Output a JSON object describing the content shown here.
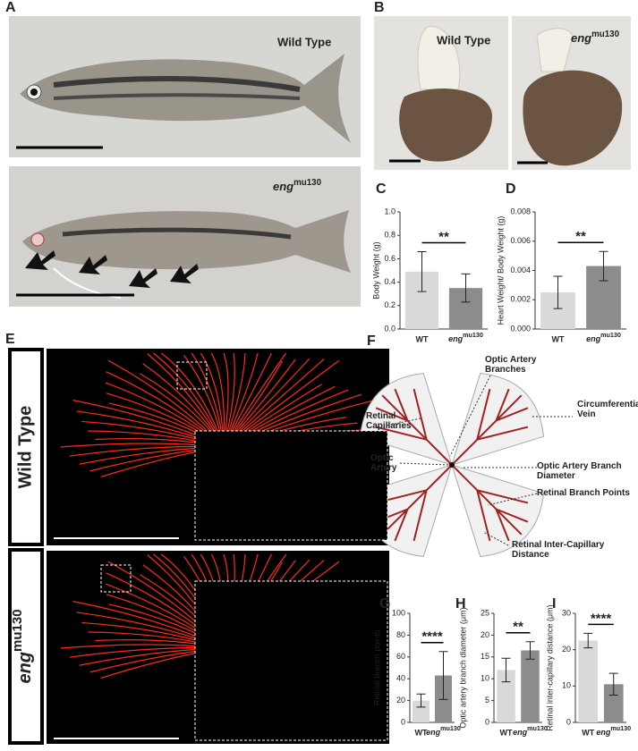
{
  "panels": {
    "a": {
      "letter": "A",
      "top_label": "Wild Type",
      "bottom_label": "engmu130"
    },
    "b": {
      "letter": "B",
      "left_label": "Wild Type",
      "right_label": "engmu130"
    },
    "e": {
      "letter": "E",
      "top_label": "Wild Type",
      "bottom_label": "engmu130"
    },
    "f": {
      "letter": "F",
      "labels": [
        "Optic Artery Branches",
        "Circumferential Vein",
        "Retinal Capillaries",
        "Optic Artery",
        "Optic Artery Branch Diameter",
        "Retinal Branch Points",
        "Retinal Inter-Capillary Distance"
      ]
    }
  },
  "chart_data": [
    {
      "type": "bar",
      "panel": "C",
      "y_label": "Body Weight (g)",
      "categories": [
        "WT",
        "engmu130"
      ],
      "values": [
        0.49,
        0.35
      ],
      "errors": [
        0.17,
        0.12
      ],
      "colors": [
        "#d9d9d9",
        "#8c8c8c"
      ],
      "significance": "**",
      "ylim": [
        0,
        1.0
      ],
      "yticks": [
        {
          "value": 0,
          "label": "0.0"
        },
        0.2,
        0.4,
        0.6,
        0.8,
        {
          "value": 1.0,
          "label": "1.0"
        }
      ]
    },
    {
      "type": "bar",
      "panel": "D",
      "y_label": "Heart Weight/ Body Weight (g)",
      "categories": [
        "WT",
        "engmu130"
      ],
      "values": [
        0.0025,
        0.0043
      ],
      "errors": [
        0.0011,
        0.001
      ],
      "colors": [
        "#d9d9d9",
        "#8c8c8c"
      ],
      "significance": "**",
      "ylim": [
        0,
        0.008
      ],
      "yticks": [
        {
          "value": 0,
          "label": "0.000"
        },
        {
          "value": 0.002,
          "label": "0.002"
        },
        {
          "value": 0.004,
          "label": "0.004"
        },
        {
          "value": 0.006,
          "label": "0.006"
        },
        {
          "value": 0.008,
          "label": "0.008"
        }
      ]
    },
    {
      "type": "bar",
      "panel": "G",
      "y_label": "Retinal branch points",
      "categories": [
        "WT",
        "engmu130"
      ],
      "values": [
        20,
        43
      ],
      "errors": [
        6,
        22
      ],
      "colors": [
        "#d9d9d9",
        "#8c8c8c"
      ],
      "significance": "****",
      "ylim": [
        0,
        100
      ],
      "yticks": [
        0,
        20,
        40,
        60,
        80,
        100
      ]
    },
    {
      "type": "bar",
      "panel": "H",
      "y_label": "Optic artery branch diameter (μm)",
      "categories": [
        "WT",
        "engmu130"
      ],
      "values": [
        12,
        16.5
      ],
      "errors": [
        2.7,
        2
      ],
      "colors": [
        "#d9d9d9",
        "#8c8c8c"
      ],
      "significance": "**",
      "ylim": [
        0,
        25
      ],
      "yticks": [
        0,
        5,
        10,
        15,
        20,
        25
      ]
    },
    {
      "type": "bar",
      "panel": "I",
      "y_label": "Retinal inter-capillary distance (μm)",
      "categories": [
        "WT",
        "engmu130"
      ],
      "values": [
        22.5,
        10.5
      ],
      "errors": [
        2,
        3
      ],
      "colors": [
        "#d9d9d9",
        "#8c8c8c"
      ],
      "significance": "****",
      "ylim": [
        0,
        30
      ],
      "yticks": [
        0,
        10,
        20,
        30
      ]
    }
  ]
}
